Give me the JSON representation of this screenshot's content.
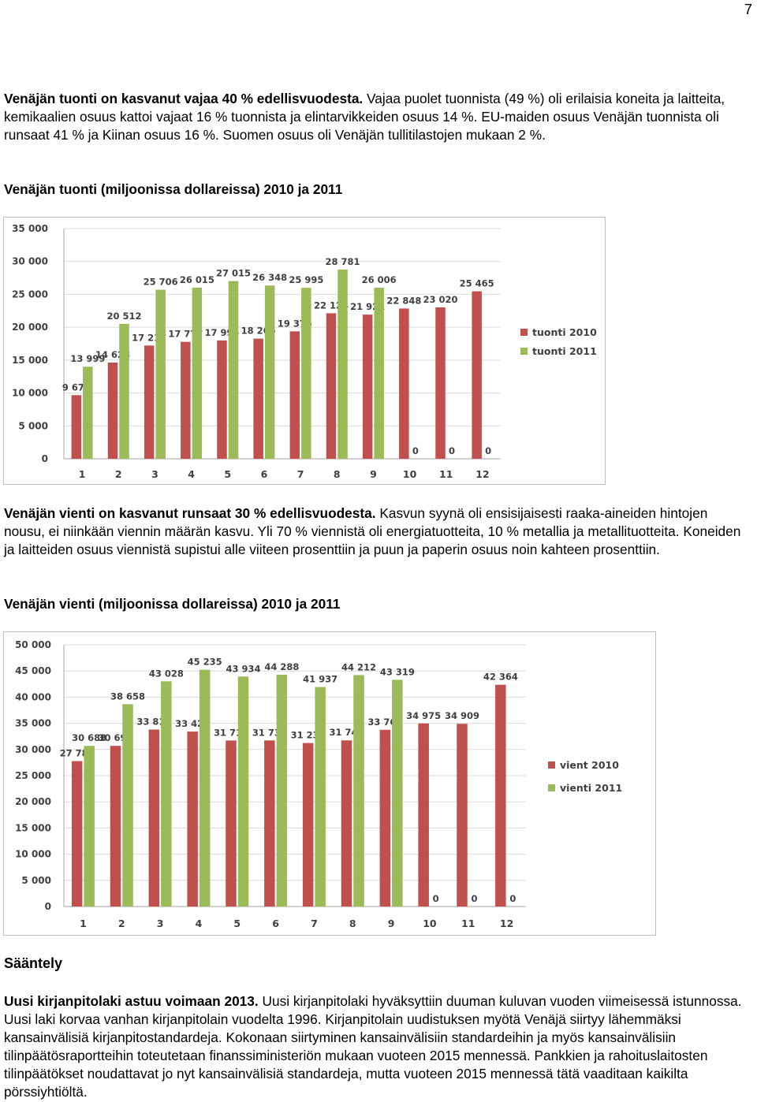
{
  "page_number": "7",
  "import_paragraph": {
    "lead": "Venäjän tuonti on kasvanut vajaa 40 % edellisvuodesta.",
    "body": " Vajaa puolet tuonnista (49 %) oli erilaisia koneita ja laitteita, kemikaalien osuus kattoi vajaat 16 % tuonnista ja elintarvikkeiden osuus 14 %. EU-maiden osuus Venäjän tuonnista oli runsaat 41 % ja Kiinan osuus 16 %. Suomen osuus oli Venäjän tullitilastojen mukaan 2 %."
  },
  "import_heading": "Venäjän tuonti (miljoonissa dollareissa) 2010 ja 2011",
  "export_paragraph": {
    "lead": "Venäjän vienti on kasvanut runsaat 30 % edellisvuodesta.",
    "body": " Kasvun syynä oli ensisijaisesti raaka-aineiden hintojen nousu, ei niinkään viennin määrän kasvu. Yli 70 % viennistä oli energiatuotteita, 10 % metallia ja metallituotteita. Koneiden ja laitteiden osuus viennistä supistui alle viiteen prosenttiin ja puun ja paperin osuus noin kahteen prosenttiin."
  },
  "export_heading": "Venäjän vienti (miljoonissa dollareissa) 2010 ja 2011",
  "regulation_heading": "Sääntely",
  "accounting_paragraph": {
    "lead": "Uusi kirjanpitolaki astuu voimaan 2013.",
    "body": " Uusi kirjanpitolaki hyväksyttiin duuman kuluvan vuoden viimeisessä istunnossa. Uusi laki korvaa vanhan kirjanpitolain vuodelta 1996. Kirjanpitolain uudistuksen myötä Venäjä siirtyy lähemmäksi kansainvälisiä kirjanpitostandardeja. Kokonaan siirtyminen kansainvälisiin standardeihin ja myös kansainvälisiin tilinpäätösraportteihin toteutetaan finanssiministeriön mukaan vuoteen 2015 mennessä. Pankkien ja rahoituslaitosten tilinpäätökset noudattavat jo nyt kansainvälisiä standardeja, mutta vuoteen 2015 mennessä tätä vaaditaan kaikilta pörssiyhtiöltä."
  },
  "colors": {
    "series_2010": "#c0504d",
    "series_2011": "#9bbb59",
    "axis": "#a6a6a6",
    "grid": "#d9d9d9"
  },
  "chart_data": [
    {
      "type": "bar",
      "categories": [
        "1",
        "2",
        "3",
        "4",
        "5",
        "6",
        "7",
        "8",
        "9",
        "10",
        "11",
        "12"
      ],
      "ylim": [
        0,
        35000
      ],
      "y_ticks": [
        "0",
        "5 000",
        "10 000",
        "15 000",
        "20 000",
        "25 000",
        "30 000",
        "35 000"
      ],
      "legend_position": "right",
      "series": [
        {
          "name": "tuonti 2010",
          "values": [
            9677,
            14628,
            17217,
            17777,
            17995,
            18266,
            19375,
            22124,
            21921,
            22848,
            23020,
            25465
          ],
          "labels": [
            "9 677",
            "14 628",
            "17 217",
            "17 777",
            "17 995",
            "18 266",
            "19 375",
            "22 124",
            "21 921",
            "22 848",
            "23 020",
            "25 465"
          ]
        },
        {
          "name": "tuonti 2011",
          "values": [
            13999,
            20512,
            25706,
            26015,
            27015,
            26348,
            25995,
            28781,
            26006,
            0,
            0,
            0
          ],
          "labels": [
            "13 999",
            "20 512",
            "25 706",
            "26 015",
            "27 015",
            "26 348",
            "25 995",
            "28 781",
            "26 006",
            "0",
            "0",
            "0"
          ]
        }
      ]
    },
    {
      "type": "bar",
      "categories": [
        "1",
        "2",
        "3",
        "4",
        "5",
        "6",
        "7",
        "8",
        "9",
        "10",
        "11",
        "12"
      ],
      "ylim": [
        0,
        50000
      ],
      "y_ticks": [
        "0",
        "5 000",
        "10 000",
        "15 000",
        "20 000",
        "25 000",
        "30 000",
        "35 000",
        "40 000",
        "45 000",
        "50 000"
      ],
      "legend_position": "right",
      "series": [
        {
          "name": "vient 2010",
          "values": [
            27782,
            30693,
            33811,
            33420,
            31717,
            31734,
            31235,
            31740,
            33763,
            34975,
            34909,
            42364
          ],
          "labels": [
            "27 782",
            "30 693",
            "33 811",
            "33 420",
            "31 717",
            "31 734",
            "31 235",
            "31 740",
            "33 763",
            "34 975",
            "34 909",
            "42 364"
          ]
        },
        {
          "name": "vienti 2011",
          "values": [
            30688,
            38658,
            43028,
            45235,
            43934,
            44288,
            41937,
            44212,
            43319,
            0,
            0,
            0
          ],
          "labels": [
            "30 688",
            "38 658",
            "43 028",
            "45 235",
            "43 934",
            "44 288",
            "41 937",
            "44 212",
            "43 319",
            "0",
            "0",
            "0"
          ]
        }
      ]
    }
  ]
}
